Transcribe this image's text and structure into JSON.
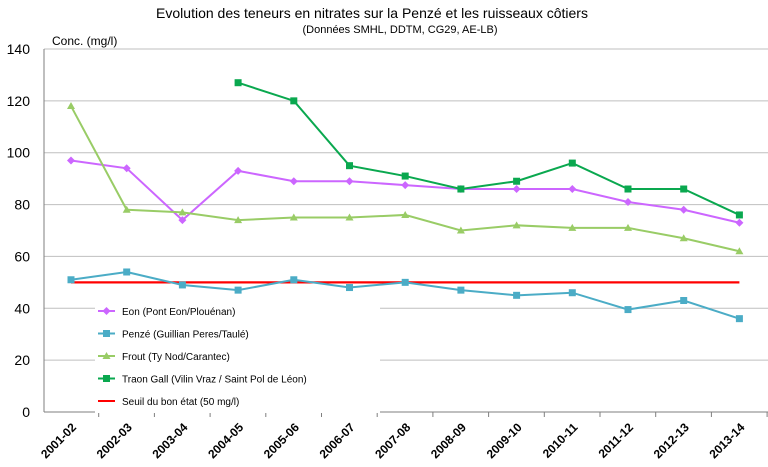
{
  "chart_data": {
    "type": "line",
    "title": "Evolution des teneurs en nitrates sur la Penzé et les ruisseaux côtiers",
    "subtitle": "(Données SMHL, DDTM, CG29, AE-LB)",
    "ylabel": "Conc. (mg/l)",
    "xlabel": "",
    "ylim": [
      0,
      140
    ],
    "yticks": [
      0,
      20,
      40,
      60,
      80,
      100,
      120,
      140
    ],
    "grid": "horizontal",
    "legend_position": "bottom-left",
    "categories": [
      "2001-02",
      "2002-03",
      "2003-04",
      "2004-05",
      "2005-06",
      "2006-07",
      "2007-08",
      "2008-09",
      "2009-10",
      "2010-11",
      "2011-12",
      "2012-13",
      "2013-14"
    ],
    "series": [
      {
        "name": "Eon (Pont Eon/Plouénan)",
        "color": "#cc66ff",
        "marker": "diamond",
        "values": [
          97,
          94,
          74,
          93,
          89,
          89,
          87.5,
          86,
          86,
          86,
          81,
          78,
          73
        ]
      },
      {
        "name": "Penzé (Guillian Peres/Taulé)",
        "color": "#4bacc6",
        "marker": "square",
        "values": [
          51,
          54,
          49,
          47,
          51,
          48,
          50,
          47,
          45,
          46,
          39.5,
          43,
          36
        ]
      },
      {
        "name": "Frout (Ty Nod/Carantec)",
        "color": "#99cc66",
        "marker": "triangle",
        "values": [
          118,
          78,
          77,
          74,
          75,
          75,
          76,
          70,
          72,
          71,
          71,
          67,
          62
        ]
      },
      {
        "name": "Traon Gall (Vilin Vraz / Saint Pol de Léon)",
        "color": "#0aa84f",
        "marker": "square",
        "values": [
          null,
          null,
          null,
          127,
          120,
          95,
          91,
          86,
          89,
          96,
          86,
          86,
          76
        ]
      },
      {
        "name": "Seuil du bon état (50 mg/l)",
        "color": "#ff0000",
        "marker": "none",
        "values": [
          50,
          50,
          50,
          50,
          50,
          50,
          50,
          50,
          50,
          50,
          50,
          50,
          50
        ]
      }
    ]
  }
}
